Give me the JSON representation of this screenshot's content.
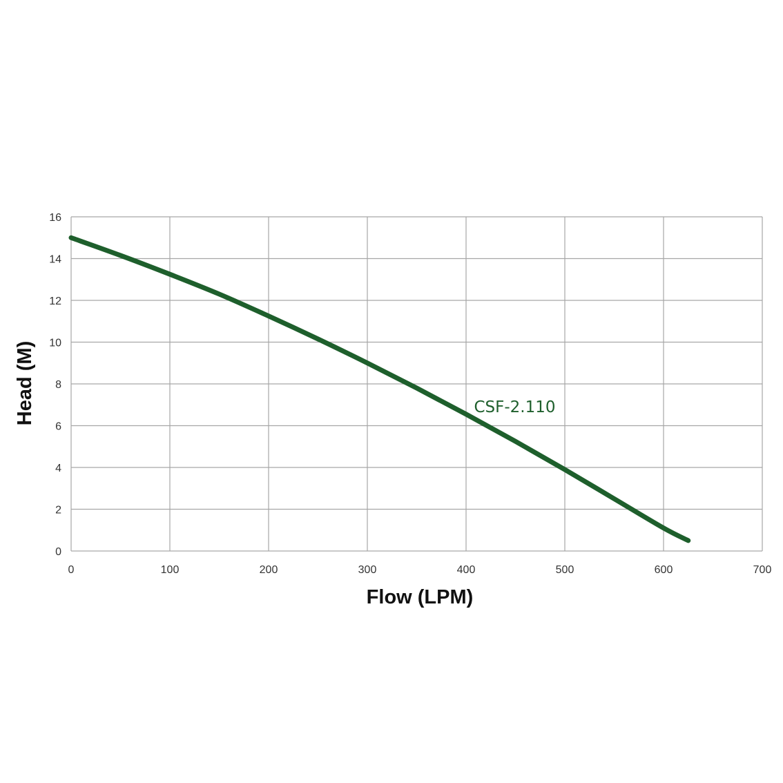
{
  "chart_data": {
    "type": "line",
    "title": "",
    "xlabel": "Flow (LPM)",
    "ylabel": "Head (M)",
    "xlim": [
      0,
      700
    ],
    "ylim": [
      0,
      16
    ],
    "x_ticks": [
      0,
      100,
      200,
      300,
      400,
      500,
      600,
      700
    ],
    "y_ticks": [
      0,
      2,
      4,
      6,
      8,
      10,
      12,
      14,
      16
    ],
    "grid": true,
    "series": [
      {
        "name": "CSF-2.110",
        "color": "#1e5f2c",
        "x": [
          0,
          50,
          100,
          150,
          200,
          250,
          300,
          350,
          400,
          450,
          500,
          550,
          600,
          625
        ],
        "y": [
          15.0,
          14.15,
          13.25,
          12.3,
          11.25,
          10.15,
          9.0,
          7.8,
          6.55,
          5.25,
          3.9,
          2.5,
          1.1,
          0.5
        ]
      }
    ]
  }
}
